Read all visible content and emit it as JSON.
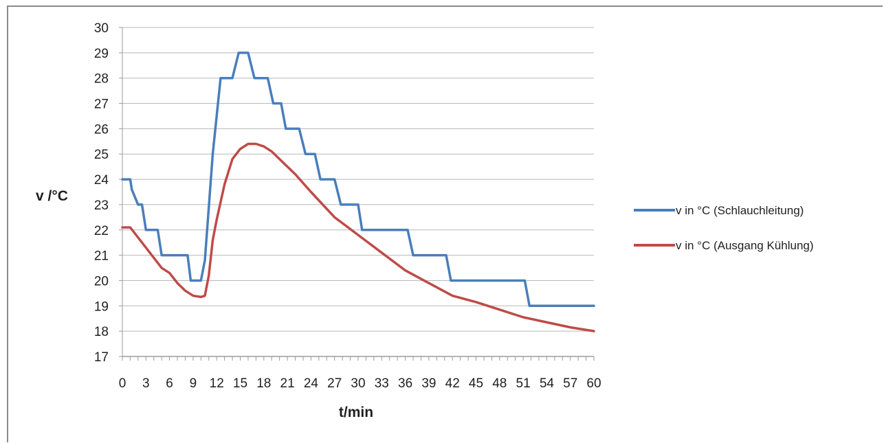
{
  "chart_data": {
    "type": "line",
    "title": "",
    "xlabel": "t/min",
    "ylabel": "v /°C",
    "xlim": [
      0,
      60
    ],
    "ylim": [
      17,
      30
    ],
    "x_ticks": [
      "0",
      "3",
      "6",
      "9",
      "12",
      "15",
      "18",
      "21",
      "24",
      "27",
      "30",
      "33",
      "36",
      "39",
      "42",
      "45",
      "48",
      "51",
      "54",
      "57",
      "60"
    ],
    "y_ticks": [
      "17",
      "18",
      "19",
      "20",
      "21",
      "22",
      "23",
      "24",
      "25",
      "26",
      "27",
      "28",
      "29",
      "30"
    ],
    "grid": "horizontal",
    "legend_position": "right",
    "series": [
      {
        "name": "v in °C (Schlauchleitung)",
        "color": "#4a7ebb",
        "x": [
          0,
          1,
          1.2,
          2,
          2.5,
          3,
          4.5,
          5,
          6.8,
          7.2,
          8.3,
          8.7,
          10,
          10.5,
          11.5,
          12.5,
          13.3,
          14,
          14.8,
          15.5,
          16,
          16.8,
          18.5,
          19.2,
          20.2,
          20.8,
          22.5,
          23.3,
          24.5,
          25.2,
          27,
          27.8,
          30,
          30.5,
          32.5,
          33,
          36.3,
          37,
          41.2,
          41.8,
          51.2,
          51.8,
          60
        ],
        "y": [
          24,
          24,
          23.6,
          23,
          23,
          22,
          22,
          21,
          21,
          21,
          21,
          20,
          20,
          20.8,
          25,
          28,
          28,
          28,
          29,
          29,
          29,
          28,
          28,
          27,
          27,
          26,
          26,
          25,
          25,
          24,
          24,
          23,
          23,
          22,
          22,
          22,
          22,
          21,
          21,
          20,
          20,
          19,
          19
        ]
      },
      {
        "name": "v in °C (Ausgang Kühlung)",
        "color": "#be4b48",
        "x": [
          0,
          1,
          2,
          3,
          4,
          5,
          6,
          7,
          8,
          9,
          10,
          10.5,
          11,
          11.5,
          12,
          13,
          14,
          15,
          16,
          17,
          18,
          19,
          20,
          21,
          22,
          24,
          27,
          30,
          33,
          36,
          39,
          42,
          45,
          48,
          51,
          54,
          57,
          60
        ],
        "y": [
          22.1,
          22.1,
          21.7,
          21.3,
          20.9,
          20.5,
          20.3,
          19.9,
          19.6,
          19.4,
          19.35,
          19.4,
          20.2,
          21.6,
          22.4,
          23.8,
          24.8,
          25.2,
          25.4,
          25.4,
          25.3,
          25.1,
          24.8,
          24.5,
          24.2,
          23.5,
          22.5,
          21.8,
          21.1,
          20.4,
          19.9,
          19.4,
          19.15,
          18.85,
          18.55,
          18.35,
          18.15,
          18.0
        ]
      }
    ]
  }
}
